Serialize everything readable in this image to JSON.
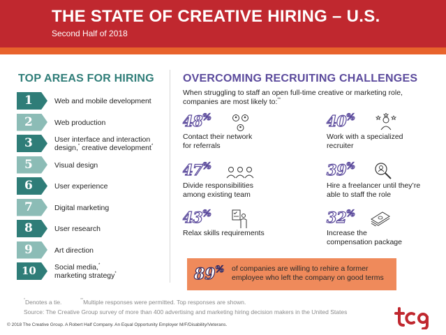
{
  "header": {
    "title": "THE STATE OF CREATIVE HIRING – U.S.",
    "subtitle": "Second Half of 2018"
  },
  "top_areas": {
    "heading": "TOP AREAS FOR HIRING",
    "items": [
      {
        "rank": "1",
        "label": "Web and mobile development",
        "mark": "",
        "label2": "",
        "mark2": ""
      },
      {
        "rank": "2",
        "label": "Web production",
        "mark": "",
        "label2": "",
        "mark2": ""
      },
      {
        "rank": "3",
        "label": "User interface and interaction",
        "mark": "",
        "label2": "design, creative development",
        "mark2": "*"
      },
      {
        "rank": "5",
        "label": "Visual design",
        "mark": "",
        "label2": "",
        "mark2": ""
      },
      {
        "rank": "6",
        "label": "User experience",
        "mark": "",
        "label2": "",
        "mark2": ""
      },
      {
        "rank": "7",
        "label": "Digital marketing",
        "mark": "",
        "label2": "",
        "mark2": ""
      },
      {
        "rank": "8",
        "label": "User research",
        "mark": "",
        "label2": "",
        "mark2": ""
      },
      {
        "rank": "9",
        "label": "Art direction",
        "mark": "",
        "label2": "",
        "mark2": ""
      },
      {
        "rank": "10",
        "label": "Social media,",
        "mark": "*",
        "label2": "marketing strategy",
        "mark2": "*"
      }
    ],
    "item3_inline_mark": "*"
  },
  "challenges": {
    "heading": "OVERCOMING RECRUITING CHALLENGES",
    "intro": "When struggling to staff an open full-time creative or marketing role, companies are most likely to:",
    "intro_mark": "**",
    "stats": [
      {
        "value": "48",
        "unit": "%",
        "label": "Contact their network for referrals",
        "icon": "people-network-icon"
      },
      {
        "value": "40",
        "unit": "%",
        "label": "Work with a specialized recruiter",
        "icon": "person-stars-icon"
      },
      {
        "value": "47",
        "unit": "%",
        "label": "Divide responsibilities among existing team",
        "icon": "team-icon"
      },
      {
        "value": "39",
        "unit": "%",
        "label": "Hire a freelancer until they’re able to staff the role",
        "icon": "search-person-icon"
      },
      {
        "value": "43",
        "unit": "%",
        "label": "Relax skills requirements",
        "icon": "checklist-person-icon"
      },
      {
        "value": "32",
        "unit": "%",
        "label": "Increase the compensation package",
        "icon": "money-stack-icon"
      }
    ]
  },
  "callout": {
    "value": "89",
    "unit": "%",
    "text": "of companies are willing to rehire a former employee who left the company on good terms"
  },
  "footnotes": {
    "tie": "Denotes a tie.",
    "tie_mark": "*",
    "multi": "Multiple responses were permitted. Top responses are shown.",
    "multi_mark": "**",
    "source": "Source: The Creative Group survey of more than 400 advertising and marketing hiring decision makers in the United States"
  },
  "copyright": "© 2018 The Creative Group. A Robert Half Company. An Equal Opportunity Employer M/F/Disability/Veterans.",
  "logo_text": "tcg",
  "colors": {
    "header_red": "#c0282f",
    "orange": "#e8632c",
    "teal_dark": "#2f7d78",
    "teal_light": "#8cbcb6",
    "purple": "#5b4a9c",
    "callout_orange": "#ef8a5b"
  }
}
